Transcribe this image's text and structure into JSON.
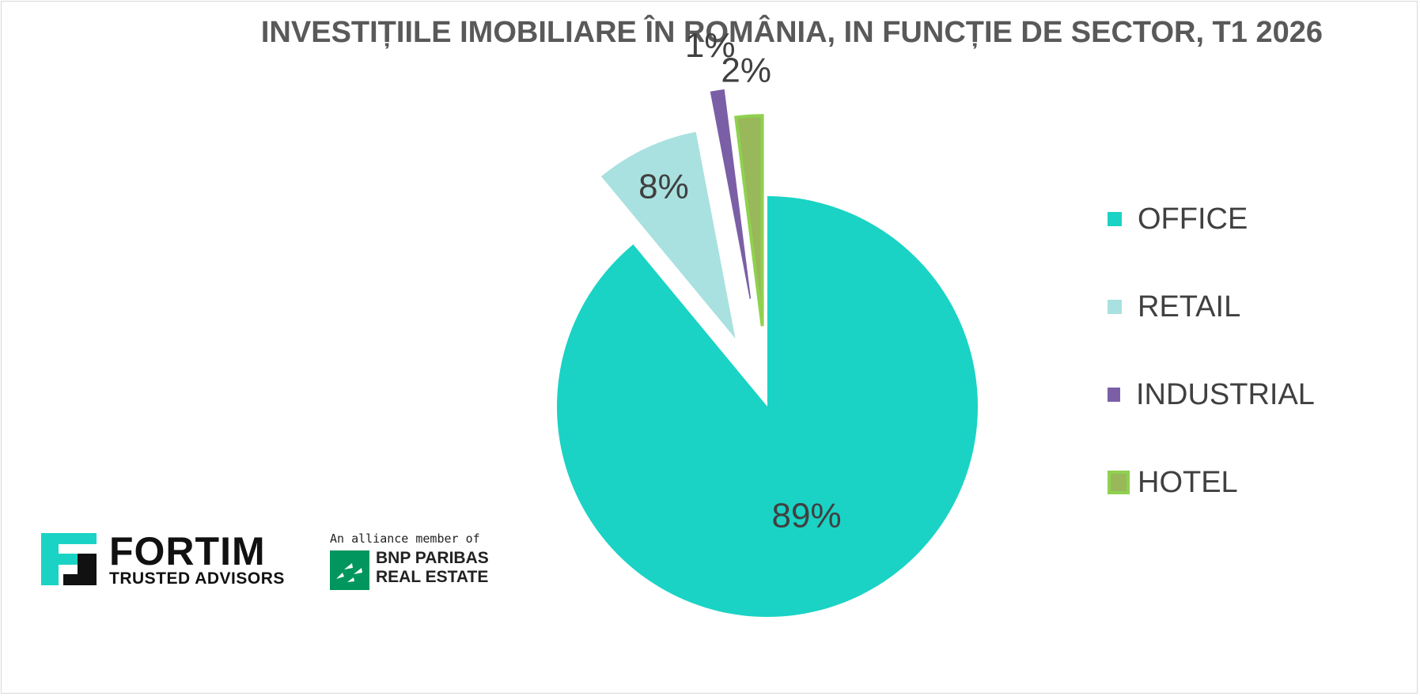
{
  "chart_data": {
    "type": "pie",
    "title": "INVESTIȚIILE IMOBILIARE ÎN ROMÂNIA, IN FUNCȚIE DE SECTOR, T1 2026",
    "legend_position": "right",
    "slices": [
      {
        "name": "OFFICE",
        "value": 89,
        "label": "89%",
        "color": "#1ad3c5"
      },
      {
        "name": "RETAIL",
        "value": 8,
        "label": "8%",
        "color": "#a8e1e0"
      },
      {
        "name": "INDUSTRIAL",
        "value": 1,
        "label": "1%",
        "color": "#7b5fa6"
      },
      {
        "name": "HOTEL",
        "value": 2,
        "label": "2%",
        "color": "#8fc95a"
      }
    ]
  },
  "logos": {
    "fortim": {
      "name": "FORTIM",
      "tagline": "TRUSTED ADVISORS",
      "icon": "fortim-logo-icon"
    },
    "bnp": {
      "alliance": "An alliance member of",
      "name_line1": "BNP PARIBAS",
      "name_line2": "REAL ESTATE",
      "icon": "bnp-paribas-icon"
    }
  }
}
